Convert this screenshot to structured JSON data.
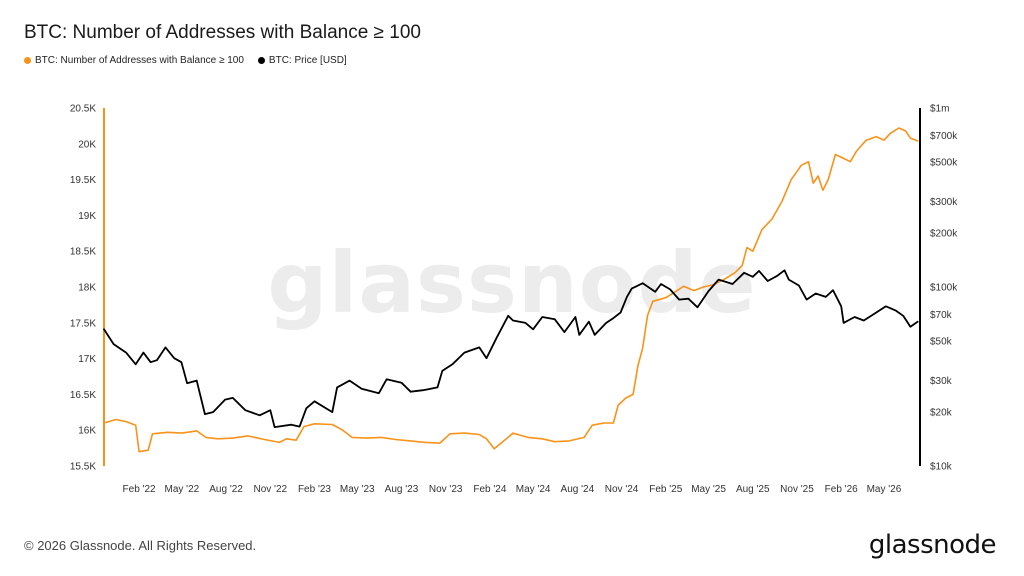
{
  "header": {
    "title": "BTC: Number of Addresses with Balance ≥ 100"
  },
  "legend": {
    "items": [
      {
        "label": "BTC: Number of Addresses with Balance ≥ 100",
        "color": "#f7931a"
      },
      {
        "label": "BTC: Price [USD]",
        "color": "#000000"
      }
    ]
  },
  "watermark": "glassnode",
  "footer": {
    "copyright": "© 2026 Glassnode. All Rights Reserved.",
    "logo": "glassnode"
  },
  "chart_data": {
    "type": "line",
    "left_axis": {
      "ticks": [
        15500,
        16000,
        16500,
        17000,
        17500,
        18000,
        18500,
        19000,
        19500,
        20000,
        20500
      ],
      "tick_labels": [
        "15.5K",
        "16K",
        "16.5K",
        "17K",
        "17.5K",
        "18K",
        "18.5K",
        "19K",
        "19.5K",
        "20K",
        "20.5K"
      ],
      "ylim": [
        15500,
        20500
      ]
    },
    "right_axis": {
      "scale": "log",
      "ticks": [
        10000,
        20000,
        30000,
        50000,
        70000,
        100000,
        200000,
        300000,
        500000,
        700000,
        1000000
      ],
      "tick_labels": [
        "$10k",
        "$20k",
        "$30k",
        "$50k",
        "$70k",
        "$100k",
        "$200k",
        "$300k",
        "$500k",
        "$700k",
        "$1m"
      ],
      "ylim": [
        10000,
        1000000
      ]
    },
    "x_axis": {
      "ticks": [
        "2022-02-01",
        "2022-05-01",
        "2022-08-01",
        "2022-11-01",
        "2023-02-01",
        "2023-05-01",
        "2023-08-01",
        "2023-11-01",
        "2024-02-01",
        "2024-05-01",
        "2024-08-01",
        "2024-11-01",
        "2025-02-01",
        "2025-05-01",
        "2025-08-01",
        "2025-11-01",
        "2026-02-01",
        "2026-05-01"
      ],
      "tick_labels": [
        "Feb '22",
        "May '22",
        "Aug '22",
        "Nov '22",
        "Feb '23",
        "May '23",
        "Aug '23",
        "Nov '23",
        "Feb '24",
        "May '24",
        "Aug '24",
        "Nov '24",
        "Feb '25",
        "May '25",
        "Aug '25",
        "Nov '25",
        "Feb '26",
        "May '26"
      ],
      "range": [
        "2021-11-20",
        "2026-07-15"
      ]
    },
    "grid": false,
    "legend_position": "top-left",
    "series": [
      {
        "name": "BTC: Number of Addresses with Balance ≥ 100",
        "axis": "left",
        "color": "#f7931a",
        "points": [
          [
            "2021-11-20",
            16100
          ],
          [
            "2021-12-15",
            16150
          ],
          [
            "2022-01-05",
            16120
          ],
          [
            "2022-01-25",
            16070
          ],
          [
            "2022-02-01",
            15700
          ],
          [
            "2022-02-20",
            15720
          ],
          [
            "2022-03-01",
            15950
          ],
          [
            "2022-04-01",
            15970
          ],
          [
            "2022-05-01",
            15960
          ],
          [
            "2022-06-01",
            15990
          ],
          [
            "2022-06-20",
            15900
          ],
          [
            "2022-07-15",
            15880
          ],
          [
            "2022-08-15",
            15890
          ],
          [
            "2022-09-15",
            15920
          ],
          [
            "2022-10-20",
            15870
          ],
          [
            "2022-11-20",
            15830
          ],
          [
            "2022-12-05",
            15880
          ],
          [
            "2022-12-25",
            15860
          ],
          [
            "2023-01-10",
            16050
          ],
          [
            "2023-02-01",
            16090
          ],
          [
            "2023-03-10",
            16080
          ],
          [
            "2023-04-01",
            16000
          ],
          [
            "2023-04-20",
            15900
          ],
          [
            "2023-05-20",
            15890
          ],
          [
            "2023-06-20",
            15900
          ],
          [
            "2023-07-20",
            15870
          ],
          [
            "2023-08-20",
            15850
          ],
          [
            "2023-09-20",
            15830
          ],
          [
            "2023-10-20",
            15820
          ],
          [
            "2023-11-10",
            15950
          ],
          [
            "2023-12-10",
            15960
          ],
          [
            "2024-01-10",
            15940
          ],
          [
            "2024-01-25",
            15880
          ],
          [
            "2024-02-10",
            15740
          ],
          [
            "2024-03-01",
            15850
          ],
          [
            "2024-03-20",
            15960
          ],
          [
            "2024-04-20",
            15900
          ],
          [
            "2024-05-20",
            15880
          ],
          [
            "2024-06-15",
            15840
          ],
          [
            "2024-07-15",
            15850
          ],
          [
            "2024-08-15",
            15900
          ],
          [
            "2024-09-01",
            16070
          ],
          [
            "2024-09-25",
            16100
          ],
          [
            "2024-10-15",
            16100
          ],
          [
            "2024-10-25",
            16350
          ],
          [
            "2024-11-10",
            16450
          ],
          [
            "2024-11-25",
            16500
          ],
          [
            "2024-12-05",
            16900
          ],
          [
            "2024-12-15",
            17150
          ],
          [
            "2024-12-25",
            17600
          ],
          [
            "2025-01-05",
            17800
          ],
          [
            "2025-02-01",
            17850
          ],
          [
            "2025-02-20",
            17930
          ],
          [
            "2025-03-10",
            18010
          ],
          [
            "2025-04-01",
            17950
          ],
          [
            "2025-04-20",
            18000
          ],
          [
            "2025-05-10",
            18030
          ],
          [
            "2025-06-01",
            18100
          ],
          [
            "2025-06-25",
            18200
          ],
          [
            "2025-07-10",
            18300
          ],
          [
            "2025-07-20",
            18550
          ],
          [
            "2025-08-01",
            18500
          ],
          [
            "2025-08-20",
            18800
          ],
          [
            "2025-09-10",
            18950
          ],
          [
            "2025-10-01",
            19200
          ],
          [
            "2025-10-20",
            19500
          ],
          [
            "2025-11-10",
            19700
          ],
          [
            "2025-11-25",
            19750
          ],
          [
            "2025-12-05",
            19450
          ],
          [
            "2025-12-15",
            19550
          ],
          [
            "2025-12-25",
            19350
          ],
          [
            "2026-01-05",
            19500
          ],
          [
            "2026-01-20",
            19850
          ],
          [
            "2026-02-05",
            19800
          ],
          [
            "2026-02-20",
            19750
          ],
          [
            "2026-03-05",
            19900
          ],
          [
            "2026-03-25",
            20050
          ],
          [
            "2026-04-15",
            20100
          ],
          [
            "2026-05-01",
            20050
          ],
          [
            "2026-05-15",
            20150
          ],
          [
            "2026-06-01",
            20220
          ],
          [
            "2026-06-15",
            20180
          ],
          [
            "2026-06-25",
            20080
          ],
          [
            "2026-07-10",
            20040
          ]
        ]
      },
      {
        "name": "BTC: Price [USD]",
        "axis": "right",
        "color": "#000000",
        "points": [
          [
            "2021-11-20",
            58000
          ],
          [
            "2021-12-10",
            48000
          ],
          [
            "2022-01-05",
            43000
          ],
          [
            "2022-01-25",
            37000
          ],
          [
            "2022-02-10",
            43000
          ],
          [
            "2022-02-25",
            38000
          ],
          [
            "2022-03-10",
            39000
          ],
          [
            "2022-03-28",
            46000
          ],
          [
            "2022-04-15",
            40000
          ],
          [
            "2022-04-30",
            38000
          ],
          [
            "2022-05-12",
            29000
          ],
          [
            "2022-06-01",
            30000
          ],
          [
            "2022-06-18",
            19500
          ],
          [
            "2022-07-05",
            20000
          ],
          [
            "2022-07-30",
            23500
          ],
          [
            "2022-08-15",
            24000
          ],
          [
            "2022-09-10",
            20500
          ],
          [
            "2022-10-10",
            19200
          ],
          [
            "2022-11-01",
            20500
          ],
          [
            "2022-11-10",
            16500
          ],
          [
            "2022-12-15",
            17000
          ],
          [
            "2023-01-01",
            16600
          ],
          [
            "2023-01-15",
            21000
          ],
          [
            "2023-02-01",
            23000
          ],
          [
            "2023-03-10",
            20000
          ],
          [
            "2023-03-20",
            27500
          ],
          [
            "2023-04-15",
            30000
          ],
          [
            "2023-05-10",
            27000
          ],
          [
            "2023-06-15",
            25500
          ],
          [
            "2023-07-01",
            30500
          ],
          [
            "2023-08-01",
            29200
          ],
          [
            "2023-08-20",
            26000
          ],
          [
            "2023-09-15",
            26500
          ],
          [
            "2023-10-15",
            27500
          ],
          [
            "2023-10-25",
            34000
          ],
          [
            "2023-11-15",
            37000
          ],
          [
            "2023-12-10",
            43000
          ],
          [
            "2024-01-10",
            46000
          ],
          [
            "2024-01-25",
            40000
          ],
          [
            "2024-02-15",
            52000
          ],
          [
            "2024-03-10",
            69000
          ],
          [
            "2024-03-20",
            65000
          ],
          [
            "2024-04-15",
            63000
          ],
          [
            "2024-05-01",
            58000
          ],
          [
            "2024-05-20",
            68000
          ],
          [
            "2024-06-15",
            66000
          ],
          [
            "2024-07-05",
            56000
          ],
          [
            "2024-07-28",
            68000
          ],
          [
            "2024-08-05",
            54000
          ],
          [
            "2024-08-25",
            64000
          ],
          [
            "2024-09-06",
            54000
          ],
          [
            "2024-09-30",
            63000
          ],
          [
            "2024-10-15",
            67000
          ],
          [
            "2024-10-30",
            72000
          ],
          [
            "2024-11-12",
            88000
          ],
          [
            "2024-11-22",
            98000
          ],
          [
            "2024-12-15",
            105000
          ],
          [
            "2025-01-10",
            94000
          ],
          [
            "2025-01-22",
            104000
          ],
          [
            "2025-02-10",
            97000
          ],
          [
            "2025-03-01",
            85000
          ],
          [
            "2025-03-20",
            86000
          ],
          [
            "2025-04-08",
            77000
          ],
          [
            "2025-05-01",
            95000
          ],
          [
            "2025-05-22",
            110000
          ],
          [
            "2025-06-20",
            104000
          ],
          [
            "2025-07-14",
            120000
          ],
          [
            "2025-08-01",
            114000
          ],
          [
            "2025-08-14",
            123000
          ],
          [
            "2025-09-01",
            108000
          ],
          [
            "2025-09-20",
            115000
          ],
          [
            "2025-10-06",
            124000
          ],
          [
            "2025-10-15",
            110000
          ],
          [
            "2025-11-05",
            102000
          ],
          [
            "2025-11-21",
            85000
          ],
          [
            "2025-12-10",
            92000
          ],
          [
            "2025-12-31",
            88000
          ],
          [
            "2026-01-15",
            96000
          ],
          [
            "2026-02-01",
            78000
          ],
          [
            "2026-02-06",
            63000
          ],
          [
            "2026-03-01",
            68000
          ],
          [
            "2026-03-20",
            65000
          ],
          [
            "2026-04-15",
            72000
          ],
          [
            "2026-05-05",
            78000
          ],
          [
            "2026-05-25",
            74000
          ],
          [
            "2026-06-10",
            69000
          ],
          [
            "2026-06-25",
            60000
          ],
          [
            "2026-07-10",
            64000
          ]
        ]
      }
    ]
  }
}
